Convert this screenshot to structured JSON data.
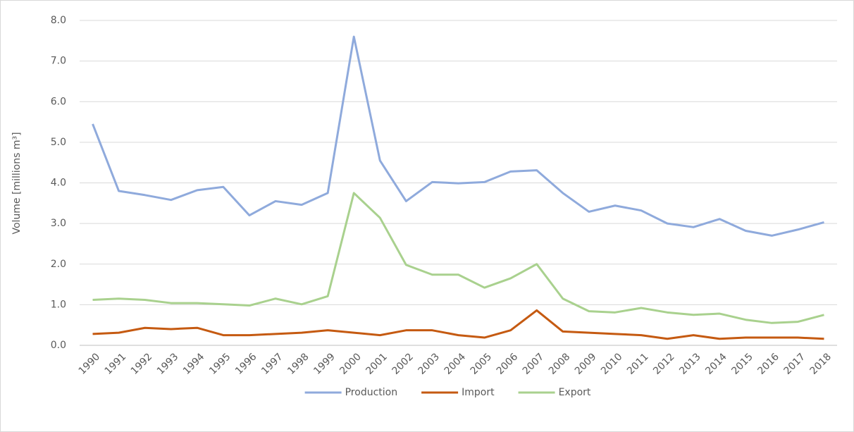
{
  "chart_data": {
    "type": "line",
    "y_label": "Volume [millions m³]",
    "categories": [
      "1990",
      "1991",
      "1992",
      "1993",
      "1994",
      "1995",
      "1996",
      "1997",
      "1998",
      "1999",
      "2000",
      "2001",
      "2002",
      "2003",
      "2004",
      "2005",
      "2006",
      "2007",
      "2008",
      "2009",
      "2010",
      "2011",
      "2012",
      "2013",
      "2014",
      "2015",
      "2016",
      "2017",
      "2018"
    ],
    "series": [
      {
        "name": "Production",
        "color": "#8faadc",
        "values": [
          5.45,
          3.8,
          3.7,
          3.58,
          3.82,
          3.9,
          3.2,
          3.55,
          3.46,
          3.75,
          7.6,
          4.55,
          3.55,
          4.02,
          3.99,
          4.02,
          4.28,
          4.31,
          3.75,
          3.29,
          3.44,
          3.32,
          3.0,
          2.91,
          3.11,
          2.82,
          2.7,
          2.85,
          3.03
        ]
      },
      {
        "name": "Import",
        "color": "#c55a11",
        "values": [
          0.28,
          0.31,
          0.43,
          0.4,
          0.43,
          0.25,
          0.25,
          0.28,
          0.31,
          0.37,
          0.31,
          0.25,
          0.37,
          0.37,
          0.25,
          0.19,
          0.37,
          0.86,
          0.34,
          0.31,
          0.28,
          0.25,
          0.16,
          0.25,
          0.16,
          0.19,
          0.19,
          0.19,
          0.16
        ]
      },
      {
        "name": "Export",
        "color": "#a9d18e",
        "values": [
          1.12,
          1.15,
          1.12,
          1.04,
          1.04,
          1.01,
          0.98,
          1.15,
          1.01,
          1.21,
          3.75,
          3.14,
          1.98,
          1.74,
          1.74,
          1.42,
          1.65,
          2.0,
          1.15,
          0.84,
          0.81,
          0.92,
          0.81,
          0.75,
          0.78,
          0.63,
          0.55,
          0.58,
          0.75
        ]
      }
    ],
    "ylim": [
      0,
      8
    ],
    "yticks": [
      {
        "value": 0,
        "label": "0.0"
      },
      {
        "value": 1,
        "label": "1.0"
      },
      {
        "value": 2,
        "label": "2.0"
      },
      {
        "value": 3,
        "label": "3.0"
      },
      {
        "value": 4,
        "label": "4.0"
      },
      {
        "value": 5,
        "label": "5.0"
      },
      {
        "value": 6,
        "label": "6.0"
      },
      {
        "value": 7,
        "label": "7.0"
      },
      {
        "value": 8,
        "label": "8.0"
      }
    ],
    "grid": true,
    "legend": "bottom"
  }
}
